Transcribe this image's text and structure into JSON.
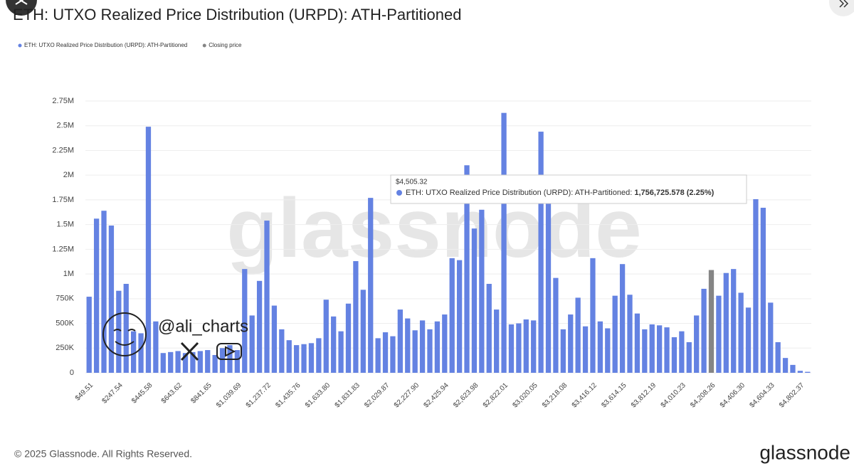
{
  "chart_data": {
    "type": "bar",
    "title": "ETH: UTXO Realized Price Distribution (URPD): ATH-Partitioned",
    "categories": [
      "$49.51",
      null,
      null,
      null,
      "$247.54",
      null,
      null,
      null,
      "$445.58",
      null,
      null,
      null,
      "$643.62",
      null,
      null,
      null,
      "$841.65",
      null,
      null,
      null,
      "$1,039.69",
      null,
      null,
      null,
      "$1,237.72",
      null,
      null,
      null,
      "$1,435.76",
      null,
      null,
      null,
      "$1,633.80",
      null,
      null,
      null,
      "$1,831.83",
      null,
      null,
      null,
      "$2,029.87",
      null,
      null,
      null,
      "$2,227.90",
      null,
      null,
      null,
      "$2,425.94",
      null,
      null,
      null,
      "$2,623.98",
      null,
      null,
      null,
      "$2,822.01",
      null,
      null,
      null,
      "$3,020.05",
      null,
      null,
      null,
      "$3,218.08",
      null,
      null,
      null,
      "$3,416.12",
      null,
      null,
      null,
      "$3,614.15",
      null,
      null,
      null,
      "$3,812.19",
      null,
      null,
      null,
      "$4,010.23",
      null,
      null,
      null,
      "$4,208.26",
      null,
      null,
      null,
      "$4,406.30",
      null,
      null,
      null,
      "$4,604.33",
      null,
      null,
      null,
      "$4,802.37",
      null
    ],
    "series": [
      {
        "name": "ETH: UTXO Realized Price Distribution (URPD): ATH-Partitioned",
        "color": "#6482e2",
        "values": [
          770000,
          1560000,
          1640000,
          1490000,
          830000,
          900000,
          420000,
          400000,
          2490000,
          520000,
          200000,
          210000,
          220000,
          200000,
          210000,
          220000,
          230000,
          180000,
          250000,
          280000,
          230000,
          1050000,
          580000,
          930000,
          1540000,
          680000,
          440000,
          330000,
          280000,
          290000,
          300000,
          350000,
          740000,
          570000,
          420000,
          700000,
          1130000,
          840000,
          1770000,
          350000,
          410000,
          370000,
          640000,
          550000,
          430000,
          530000,
          440000,
          520000,
          590000,
          1160000,
          1140000,
          2100000,
          1460000,
          1650000,
          900000,
          640000,
          2630000,
          490000,
          500000,
          540000,
          530000,
          2440000,
          1760000,
          960000,
          440000,
          590000,
          760000,
          470000,
          1160000,
          520000,
          450000,
          780000,
          1100000,
          790000,
          600000,
          440000,
          490000,
          480000,
          460000,
          360000,
          420000,
          310000,
          580000,
          850000,
          null,
          780000,
          1010000,
          1050000,
          810000,
          660000,
          1756725.578,
          1670000,
          710000,
          310000,
          150000,
          80000,
          20000,
          10000
        ]
      },
      {
        "name": "Closing price",
        "color": "#858585",
        "values": [
          null,
          null,
          null,
          null,
          null,
          null,
          null,
          null,
          null,
          null,
          null,
          null,
          null,
          null,
          null,
          null,
          null,
          null,
          null,
          null,
          null,
          null,
          null,
          null,
          null,
          null,
          null,
          null,
          null,
          null,
          null,
          null,
          null,
          null,
          null,
          null,
          null,
          null,
          null,
          null,
          null,
          null,
          null,
          null,
          null,
          null,
          null,
          null,
          null,
          null,
          null,
          null,
          null,
          null,
          null,
          null,
          null,
          null,
          null,
          null,
          null,
          null,
          null,
          null,
          null,
          null,
          null,
          null,
          null,
          null,
          null,
          null,
          null,
          null,
          null,
          null,
          null,
          null,
          null,
          null,
          null,
          null,
          null,
          null,
          1040000,
          null,
          null,
          null,
          null,
          null,
          null,
          null,
          null,
          null,
          null,
          null,
          null,
          null
        ]
      }
    ],
    "ylim": [
      0,
      2750000
    ],
    "yticks": [
      0,
      {
        "value": 250000,
        "label": "250K"
      },
      {
        "value": 500000,
        "label": "500K"
      },
      {
        "value": 750000,
        "label": "750K"
      },
      {
        "value": 1000000,
        "label": "1M"
      },
      {
        "value": 1250000,
        "label": "1.25M"
      },
      {
        "value": 1500000,
        "label": "1.5M"
      },
      {
        "value": 1750000,
        "label": "1.75M"
      },
      {
        "value": 2000000,
        "label": "2M"
      },
      {
        "value": 2250000,
        "label": "2.25M"
      },
      {
        "value": 2500000,
        "label": "2.5M"
      },
      {
        "value": 2750000,
        "label": "2.75M"
      }
    ],
    "grid": true,
    "tooltip": {
      "title": "$4,505.32",
      "series": "ETH: UTXO Realized Price Distribution (URPD): ATH-Partitioned:",
      "value": "1,756,725.578 (2.25%)"
    },
    "watermark": "glassnode",
    "author": "@ali_charts",
    "footer": "© 2025 Glassnode. All Rights Reserved.",
    "logo": "glassnode"
  }
}
